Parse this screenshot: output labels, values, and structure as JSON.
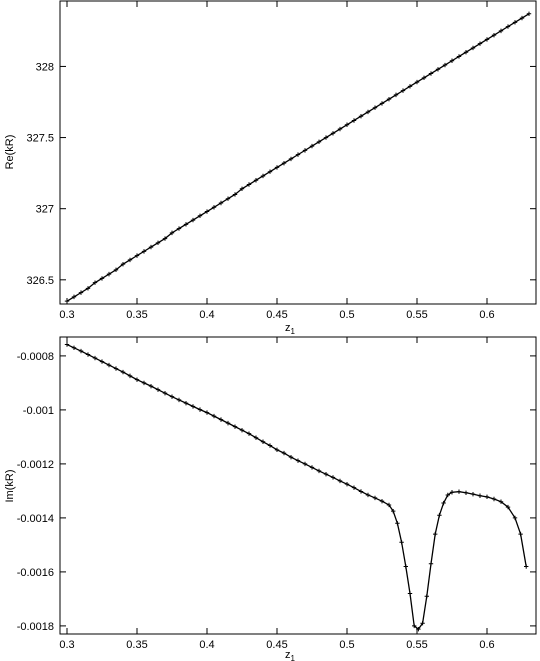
{
  "chart_data": [
    {
      "type": "line",
      "title": "",
      "xlabel": "z",
      "xlabel_subscript": "1",
      "ylabel": "Re(kR)",
      "xlim": [
        0.295,
        0.635
      ],
      "ylim": [
        326.33,
        328.46
      ],
      "xticks": [
        0.3,
        0.35,
        0.4,
        0.45,
        0.5,
        0.55,
        0.6
      ],
      "xtick_labels": [
        "0.3",
        "0.35",
        "0.4",
        "0.45",
        "0.5",
        "0.55",
        "0.6"
      ],
      "yticks": [
        326.5,
        327,
        327.5,
        328
      ],
      "ytick_labels": [
        "326.5",
        "327",
        "327.5",
        "328"
      ],
      "grid": false,
      "series": [
        {
          "marker": "plus",
          "x": [
            0.3,
            0.305,
            0.31,
            0.315,
            0.32,
            0.325,
            0.33,
            0.335,
            0.34,
            0.345,
            0.35,
            0.355,
            0.36,
            0.365,
            0.37,
            0.375,
            0.38,
            0.385,
            0.39,
            0.395,
            0.4,
            0.405,
            0.41,
            0.415,
            0.42,
            0.425,
            0.43,
            0.435,
            0.44,
            0.445,
            0.45,
            0.455,
            0.46,
            0.465,
            0.47,
            0.475,
            0.48,
            0.485,
            0.49,
            0.495,
            0.5,
            0.505,
            0.51,
            0.515,
            0.52,
            0.525,
            0.53,
            0.535,
            0.54,
            0.545,
            0.55,
            0.555,
            0.56,
            0.565,
            0.57,
            0.575,
            0.58,
            0.585,
            0.59,
            0.595,
            0.6,
            0.605,
            0.61,
            0.615,
            0.62,
            0.625,
            0.63
          ],
          "y": [
            326.35,
            326.38,
            326.41,
            326.44,
            326.48,
            326.51,
            326.54,
            326.57,
            326.61,
            326.64,
            326.67,
            326.7,
            326.73,
            326.76,
            326.79,
            326.83,
            326.86,
            326.89,
            326.92,
            326.95,
            326.98,
            327.01,
            327.04,
            327.07,
            327.1,
            327.14,
            327.17,
            327.2,
            327.23,
            327.26,
            327.29,
            327.32,
            327.35,
            327.38,
            327.41,
            327.44,
            327.47,
            327.5,
            327.53,
            327.56,
            327.59,
            327.62,
            327.65,
            327.68,
            327.71,
            327.74,
            327.77,
            327.8,
            327.83,
            327.86,
            327.89,
            327.92,
            327.95,
            327.98,
            328.01,
            328.04,
            328.07,
            328.1,
            328.13,
            328.16,
            328.19,
            328.22,
            328.25,
            328.28,
            328.31,
            328.34,
            328.37
          ]
        }
      ]
    },
    {
      "type": "line",
      "title": "",
      "xlabel": "z",
      "xlabel_subscript": "1",
      "ylabel": "Im(kR)",
      "xlim": [
        0.295,
        0.635
      ],
      "ylim": [
        -0.00183,
        -0.00073
      ],
      "xticks": [
        0.3,
        0.35,
        0.4,
        0.45,
        0.5,
        0.55,
        0.6
      ],
      "xtick_labels": [
        "0.3",
        "0.35",
        "0.4",
        "0.45",
        "0.5",
        "0.55",
        "0.6"
      ],
      "yticks": [
        -0.0008,
        -0.001,
        -0.0012,
        -0.0014,
        -0.0016,
        -0.0018
      ],
      "ytick_labels": [
        "-0.0008",
        "-0.001",
        "-0.0012",
        "-0.0014",
        "-0.0016",
        "-0.0018"
      ],
      "grid": false,
      "series": [
        {
          "marker": "plus",
          "x": [
            0.3,
            0.305,
            0.31,
            0.315,
            0.32,
            0.325,
            0.33,
            0.335,
            0.34,
            0.345,
            0.35,
            0.355,
            0.36,
            0.365,
            0.37,
            0.375,
            0.38,
            0.385,
            0.39,
            0.395,
            0.4,
            0.405,
            0.41,
            0.415,
            0.42,
            0.425,
            0.43,
            0.435,
            0.44,
            0.445,
            0.45,
            0.455,
            0.46,
            0.465,
            0.47,
            0.475,
            0.48,
            0.485,
            0.49,
            0.495,
            0.5,
            0.505,
            0.51,
            0.515,
            0.52,
            0.525,
            0.53,
            0.533,
            0.536,
            0.539,
            0.542,
            0.545,
            0.548,
            0.551,
            0.554,
            0.557,
            0.56,
            0.563,
            0.566,
            0.569,
            0.572,
            0.575,
            0.58,
            0.585,
            0.59,
            0.595,
            0.6,
            0.605,
            0.61,
            0.615,
            0.62,
            0.624,
            0.628
          ],
          "y": [
            -0.000758,
            -0.00077,
            -0.000782,
            -0.000795,
            -0.000808,
            -0.000821,
            -0.000834,
            -0.000847,
            -0.00086,
            -0.000874,
            -0.000888,
            -0.0009,
            -0.000912,
            -0.000925,
            -0.000938,
            -0.000951,
            -0.000963,
            -0.000975,
            -0.000987,
            -0.000999,
            -0.00101,
            -0.001023,
            -0.001036,
            -0.001049,
            -0.001062,
            -0.001075,
            -0.001088,
            -0.001103,
            -0.001118,
            -0.001132,
            -0.001148,
            -0.00116,
            -0.001175,
            -0.001188,
            -0.0012,
            -0.001213,
            -0.001226,
            -0.001238,
            -0.00125,
            -0.001263,
            -0.001275,
            -0.001288,
            -0.001302,
            -0.001315,
            -0.001326,
            -0.001338,
            -0.001352,
            -0.001375,
            -0.00142,
            -0.00149,
            -0.00158,
            -0.00168,
            -0.0018,
            -0.001812,
            -0.00179,
            -0.00169,
            -0.00157,
            -0.00146,
            -0.00139,
            -0.001345,
            -0.001315,
            -0.001305,
            -0.001303,
            -0.001307,
            -0.001312,
            -0.001318,
            -0.001322,
            -0.00133,
            -0.00134,
            -0.00136,
            -0.0014,
            -0.00146,
            -0.00158
          ]
        }
      ]
    }
  ]
}
